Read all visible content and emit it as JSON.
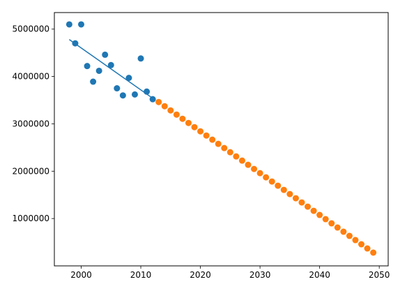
{
  "chart_data": {
    "type": "scatter",
    "title": "",
    "xlabel": "",
    "ylabel": "",
    "xlim": [
      1995.5,
      2051.5
    ],
    "ylim": [
      0,
      5350000
    ],
    "grid": false,
    "x_ticks": [
      2000,
      2010,
      2020,
      2030,
      2040,
      2050
    ],
    "y_ticks": [
      1000000,
      2000000,
      3000000,
      4000000,
      5000000
    ],
    "x_tick_labels": [
      "2000",
      "2010",
      "2020",
      "2030",
      "2040",
      "2050"
    ],
    "y_tick_labels": [
      "1000000",
      "2000000",
      "3000000",
      "4000000",
      "5000000"
    ],
    "series": [
      {
        "type": "scatter",
        "color": "#1f77b4",
        "points": [
          [
            1998,
            5100000
          ],
          [
            1999,
            4700000
          ],
          [
            2000,
            5100000
          ],
          [
            2001,
            4220000
          ],
          [
            2002,
            3890000
          ],
          [
            2003,
            4120000
          ],
          [
            2004,
            4460000
          ],
          [
            2005,
            4240000
          ],
          [
            2006,
            3750000
          ],
          [
            2007,
            3600000
          ],
          [
            2008,
            3970000
          ],
          [
            2009,
            3620000
          ],
          [
            2010,
            4380000
          ],
          [
            2011,
            3680000
          ],
          [
            2012,
            3520000
          ]
        ]
      },
      {
        "type": "line",
        "color": "#1f77b4",
        "points": [
          [
            1998,
            4780000
          ],
          [
            2012,
            3540000
          ]
        ]
      },
      {
        "type": "scatter",
        "color": "#ff7f0e",
        "x_start": 2013,
        "x_end": 2049,
        "y_start": 3460000,
        "y_end": 280000
      }
    ]
  }
}
